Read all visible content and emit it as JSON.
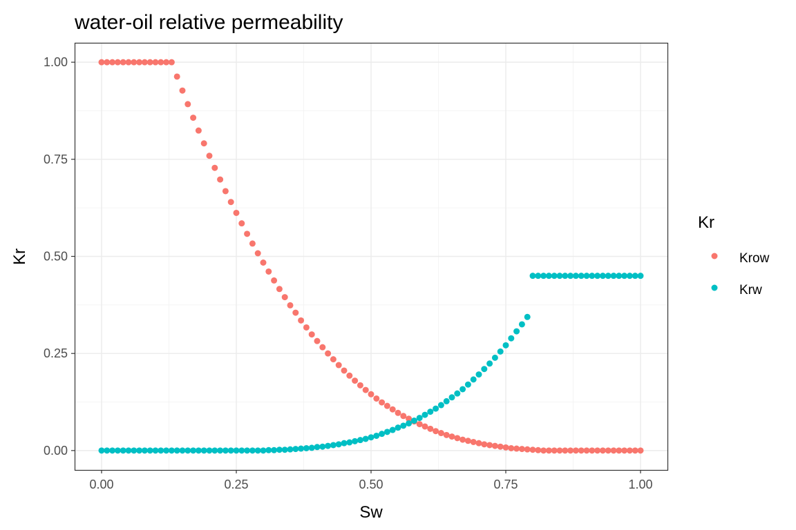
{
  "chart_data": {
    "type": "scatter",
    "title": "water-oil relative permeability",
    "xlabel": "Sw",
    "ylabel": "Kr",
    "xlim": [
      -0.05,
      1.05
    ],
    "ylim": [
      -0.05,
      1.05
    ],
    "x_ticks": [
      "0.00",
      "0.25",
      "0.50",
      "0.75",
      "1.00"
    ],
    "x_tick_values": [
      0,
      0.25,
      0.5,
      0.75,
      1.0
    ],
    "y_ticks": [
      "0.00",
      "0.25",
      "0.50",
      "0.75",
      "1.00"
    ],
    "y_tick_values": [
      0,
      0.25,
      0.5,
      0.75,
      1.0
    ],
    "grid": true,
    "legend": {
      "title": "Kr",
      "position": "right"
    },
    "series": [
      {
        "name": "Krow",
        "color": "#F8766D",
        "points": [
          [
            0.0,
            1.0
          ],
          [
            0.01,
            1.0
          ],
          [
            0.02,
            1.0
          ],
          [
            0.03,
            1.0
          ],
          [
            0.04,
            1.0
          ],
          [
            0.05,
            1.0
          ],
          [
            0.06,
            1.0
          ],
          [
            0.07,
            1.0
          ],
          [
            0.08,
            1.0
          ],
          [
            0.09,
            1.0
          ],
          [
            0.1,
            1.0
          ],
          [
            0.11,
            1.0
          ],
          [
            0.12,
            1.0
          ],
          [
            0.13,
            1.0
          ],
          [
            0.14,
            0.963
          ],
          [
            0.15,
            0.927
          ],
          [
            0.16,
            0.892
          ],
          [
            0.17,
            0.857
          ],
          [
            0.18,
            0.824
          ],
          [
            0.19,
            0.791
          ],
          [
            0.2,
            0.759
          ],
          [
            0.21,
            0.728
          ],
          [
            0.22,
            0.698
          ],
          [
            0.23,
            0.668
          ],
          [
            0.24,
            0.64
          ],
          [
            0.25,
            0.612
          ],
          [
            0.26,
            0.585
          ],
          [
            0.27,
            0.558
          ],
          [
            0.28,
            0.533
          ],
          [
            0.29,
            0.508
          ],
          [
            0.3,
            0.484
          ],
          [
            0.31,
            0.461
          ],
          [
            0.32,
            0.438
          ],
          [
            0.33,
            0.416
          ],
          [
            0.34,
            0.395
          ],
          [
            0.35,
            0.374
          ],
          [
            0.36,
            0.355
          ],
          [
            0.37,
            0.335
          ],
          [
            0.38,
            0.317
          ],
          [
            0.39,
            0.299
          ],
          [
            0.4,
            0.282
          ],
          [
            0.41,
            0.266
          ],
          [
            0.42,
            0.25
          ],
          [
            0.43,
            0.235
          ],
          [
            0.44,
            0.22
          ],
          [
            0.45,
            0.206
          ],
          [
            0.46,
            0.193
          ],
          [
            0.47,
            0.18
          ],
          [
            0.48,
            0.168
          ],
          [
            0.49,
            0.156
          ],
          [
            0.5,
            0.145
          ],
          [
            0.51,
            0.134
          ],
          [
            0.52,
            0.124
          ],
          [
            0.53,
            0.115
          ],
          [
            0.54,
            0.106
          ],
          [
            0.55,
            0.097
          ],
          [
            0.56,
            0.089
          ],
          [
            0.57,
            0.082
          ],
          [
            0.58,
            0.075
          ],
          [
            0.59,
            0.068
          ],
          [
            0.6,
            0.062
          ],
          [
            0.61,
            0.056
          ],
          [
            0.62,
            0.05
          ],
          [
            0.63,
            0.045
          ],
          [
            0.64,
            0.04
          ],
          [
            0.65,
            0.036
          ],
          [
            0.66,
            0.032
          ],
          [
            0.67,
            0.028
          ],
          [
            0.68,
            0.025
          ],
          [
            0.69,
            0.022
          ],
          [
            0.7,
            0.019
          ],
          [
            0.71,
            0.016
          ],
          [
            0.72,
            0.014
          ],
          [
            0.73,
            0.012
          ],
          [
            0.74,
            0.01
          ],
          [
            0.75,
            0.008
          ],
          [
            0.76,
            0.006
          ],
          [
            0.77,
            0.005
          ],
          [
            0.78,
            0.004
          ],
          [
            0.79,
            0.003
          ],
          [
            0.8,
            0.002
          ],
          [
            0.81,
            0.001
          ],
          [
            0.82,
            0.0
          ],
          [
            0.83,
            0.0
          ],
          [
            0.84,
            0.0
          ],
          [
            0.85,
            0.0
          ],
          [
            0.86,
            0.0
          ],
          [
            0.87,
            0.0
          ],
          [
            0.88,
            0.0
          ],
          [
            0.89,
            0.0
          ],
          [
            0.9,
            0.0
          ],
          [
            0.91,
            0.0
          ],
          [
            0.92,
            0.0
          ],
          [
            0.93,
            0.0
          ],
          [
            0.94,
            0.0
          ],
          [
            0.95,
            0.0
          ],
          [
            0.96,
            0.0
          ],
          [
            0.97,
            0.0
          ],
          [
            0.98,
            0.0
          ],
          [
            0.99,
            0.0
          ],
          [
            1.0,
            0.0
          ]
        ]
      },
      {
        "name": "Krw",
        "color": "#00BFC4",
        "points": [
          [
            0.0,
            0.0
          ],
          [
            0.01,
            0.0
          ],
          [
            0.02,
            0.0
          ],
          [
            0.03,
            0.0
          ],
          [
            0.04,
            0.0
          ],
          [
            0.05,
            0.0
          ],
          [
            0.06,
            0.0
          ],
          [
            0.07,
            0.0
          ],
          [
            0.08,
            0.0
          ],
          [
            0.09,
            0.0
          ],
          [
            0.1,
            0.0
          ],
          [
            0.11,
            0.0
          ],
          [
            0.12,
            0.0
          ],
          [
            0.13,
            0.0
          ],
          [
            0.14,
            0.0
          ],
          [
            0.15,
            0.0
          ],
          [
            0.16,
            0.0
          ],
          [
            0.17,
            0.0
          ],
          [
            0.18,
            0.0
          ],
          [
            0.19,
            0.0
          ],
          [
            0.2,
            0.0
          ],
          [
            0.21,
            0.0
          ],
          [
            0.22,
            0.0
          ],
          [
            0.23,
            0.0
          ],
          [
            0.24,
            0.0
          ],
          [
            0.25,
            0.0
          ],
          [
            0.26,
            0.0
          ],
          [
            0.27,
            0.0
          ],
          [
            0.28,
            0.0
          ],
          [
            0.29,
            0.0
          ],
          [
            0.3,
            0.0
          ],
          [
            0.31,
            0.001
          ],
          [
            0.32,
            0.001
          ],
          [
            0.33,
            0.002
          ],
          [
            0.34,
            0.002
          ],
          [
            0.35,
            0.003
          ],
          [
            0.36,
            0.004
          ],
          [
            0.37,
            0.005
          ],
          [
            0.38,
            0.006
          ],
          [
            0.39,
            0.007
          ],
          [
            0.4,
            0.009
          ],
          [
            0.41,
            0.01
          ],
          [
            0.42,
            0.012
          ],
          [
            0.43,
            0.014
          ],
          [
            0.44,
            0.016
          ],
          [
            0.45,
            0.019
          ],
          [
            0.46,
            0.021
          ],
          [
            0.47,
            0.024
          ],
          [
            0.48,
            0.027
          ],
          [
            0.49,
            0.03
          ],
          [
            0.5,
            0.034
          ],
          [
            0.51,
            0.038
          ],
          [
            0.52,
            0.043
          ],
          [
            0.53,
            0.048
          ],
          [
            0.54,
            0.053
          ],
          [
            0.55,
            0.059
          ],
          [
            0.56,
            0.064
          ],
          [
            0.57,
            0.07
          ],
          [
            0.58,
            0.077
          ],
          [
            0.59,
            0.084
          ],
          [
            0.6,
            0.092
          ],
          [
            0.61,
            0.1
          ],
          [
            0.62,
            0.108
          ],
          [
            0.63,
            0.117
          ],
          [
            0.64,
            0.127
          ],
          [
            0.65,
            0.137
          ],
          [
            0.66,
            0.147
          ],
          [
            0.67,
            0.158
          ],
          [
            0.68,
            0.17
          ],
          [
            0.69,
            0.183
          ],
          [
            0.7,
            0.196
          ],
          [
            0.71,
            0.21
          ],
          [
            0.72,
            0.224
          ],
          [
            0.73,
            0.239
          ],
          [
            0.74,
            0.255
          ],
          [
            0.75,
            0.271
          ],
          [
            0.76,
            0.289
          ],
          [
            0.77,
            0.307
          ],
          [
            0.78,
            0.325
          ],
          [
            0.79,
            0.344
          ],
          [
            0.8,
            0.45
          ],
          [
            0.81,
            0.45
          ],
          [
            0.82,
            0.45
          ],
          [
            0.83,
            0.45
          ],
          [
            0.84,
            0.45
          ],
          [
            0.85,
            0.45
          ],
          [
            0.86,
            0.45
          ],
          [
            0.87,
            0.45
          ],
          [
            0.88,
            0.45
          ],
          [
            0.89,
            0.45
          ],
          [
            0.9,
            0.45
          ],
          [
            0.91,
            0.45
          ],
          [
            0.92,
            0.45
          ],
          [
            0.93,
            0.45
          ],
          [
            0.94,
            0.45
          ],
          [
            0.95,
            0.45
          ],
          [
            0.96,
            0.45
          ],
          [
            0.97,
            0.45
          ],
          [
            0.98,
            0.45
          ],
          [
            0.99,
            0.45
          ],
          [
            1.0,
            0.45
          ]
        ]
      }
    ]
  }
}
